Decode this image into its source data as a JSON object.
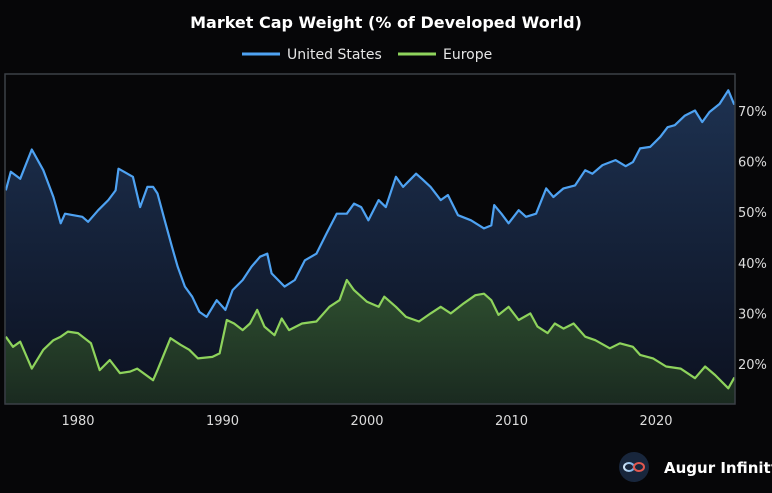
{
  "chart_data": {
    "type": "area",
    "title": "Market Cap Weight (% of Developed World)",
    "xlabel": "",
    "ylabel": "",
    "xlim": [
      1975,
      2025.7
    ],
    "ylim": [
      12,
      77
    ],
    "x_ticks": [
      "1980",
      "1990",
      "2000",
      "2010",
      "2020"
    ],
    "y_ticks": [
      "20%",
      "30%",
      "40%",
      "50%",
      "60%",
      "70%"
    ],
    "y_axis_side": "right",
    "grid": false,
    "legend_position": "top-center",
    "series": [
      {
        "name": "United States",
        "color": "#4ea2f2",
        "points": [
          [
            1975.0,
            54.3
          ],
          [
            1975.35,
            58
          ],
          [
            1976.0,
            56.6
          ],
          [
            1976.8,
            62.4
          ],
          [
            1977.6,
            58.3
          ],
          [
            1978.3,
            53
          ],
          [
            1978.8,
            47.8
          ],
          [
            1979.1,
            49.7
          ],
          [
            1980.3,
            49.1
          ],
          [
            1980.7,
            48.1
          ],
          [
            1981.4,
            50.4
          ],
          [
            1982.1,
            52.4
          ],
          [
            1982.6,
            54.3
          ],
          [
            1982.8,
            58.6
          ],
          [
            1983.8,
            57
          ],
          [
            1984.3,
            51
          ],
          [
            1984.8,
            55
          ],
          [
            1985.2,
            55
          ],
          [
            1985.5,
            53.7
          ],
          [
            1986.0,
            48.4
          ],
          [
            1986.5,
            43.2
          ],
          [
            1986.9,
            39.2
          ],
          [
            1987.4,
            35.3
          ],
          [
            1987.9,
            33.3
          ],
          [
            1988.4,
            30.3
          ],
          [
            1988.9,
            29.3
          ],
          [
            1989.6,
            32.6
          ],
          [
            1990.2,
            30.7
          ],
          [
            1990.7,
            34.6
          ],
          [
            1991.4,
            36.6
          ],
          [
            1992.0,
            39.2
          ],
          [
            1992.6,
            41.2
          ],
          [
            1993.1,
            41.8
          ],
          [
            1993.4,
            37.9
          ],
          [
            1994.3,
            35.3
          ],
          [
            1995.0,
            36.6
          ],
          [
            1995.7,
            40.5
          ],
          [
            1996.5,
            41.8
          ],
          [
            1997.2,
            45.8
          ],
          [
            1997.9,
            49.7
          ],
          [
            1998.6,
            49.7
          ],
          [
            1999.1,
            51.7
          ],
          [
            1999.6,
            51
          ],
          [
            2000.1,
            48.4
          ],
          [
            2000.8,
            52.4
          ],
          [
            2001.3,
            51
          ],
          [
            2002.0,
            57
          ],
          [
            2002.5,
            55
          ],
          [
            2003.4,
            57.6
          ],
          [
            2003.8,
            56.6
          ],
          [
            2004.4,
            55
          ],
          [
            2005.1,
            52.4
          ],
          [
            2005.6,
            53.4
          ],
          [
            2006.3,
            49.4
          ],
          [
            2007.2,
            48.4
          ],
          [
            2008.1,
            46.8
          ],
          [
            2008.6,
            47.4
          ],
          [
            2008.8,
            51.4
          ],
          [
            2009.3,
            49.7
          ],
          [
            2009.8,
            47.8
          ],
          [
            2010.5,
            50.4
          ],
          [
            2011.0,
            49.1
          ],
          [
            2011.7,
            49.7
          ],
          [
            2012.4,
            54.7
          ],
          [
            2012.9,
            53
          ],
          [
            2013.6,
            54.7
          ],
          [
            2014.4,
            55.3
          ],
          [
            2015.1,
            58.3
          ],
          [
            2015.6,
            57.6
          ],
          [
            2016.3,
            59.3
          ],
          [
            2017.2,
            60.3
          ],
          [
            2017.9,
            59.1
          ],
          [
            2018.4,
            59.9
          ],
          [
            2018.9,
            62.6
          ],
          [
            2019.6,
            62.9
          ],
          [
            2020.3,
            64.9
          ],
          [
            2020.8,
            66.8
          ],
          [
            2021.3,
            67.2
          ],
          [
            2022.0,
            69.1
          ],
          [
            2022.7,
            70.1
          ],
          [
            2023.2,
            67.8
          ],
          [
            2023.7,
            69.8
          ],
          [
            2024.4,
            71.4
          ],
          [
            2025.0,
            74.1
          ],
          [
            2025.4,
            71.4
          ],
          [
            2025.7,
            72.4
          ]
        ]
      },
      {
        "name": "Europe",
        "color": "#8ed35c",
        "points": [
          [
            1975.0,
            25.4
          ],
          [
            1975.5,
            23.4
          ],
          [
            1976.0,
            24.4
          ],
          [
            1976.8,
            19.1
          ],
          [
            1977.6,
            22.8
          ],
          [
            1978.3,
            24.7
          ],
          [
            1978.8,
            25.4
          ],
          [
            1979.3,
            26.4
          ],
          [
            1980.0,
            26.1
          ],
          [
            1980.9,
            24.1
          ],
          [
            1981.5,
            18.8
          ],
          [
            1982.2,
            20.8
          ],
          [
            1982.9,
            18.2
          ],
          [
            1983.6,
            18.5
          ],
          [
            1984.1,
            19.1
          ],
          [
            1985.2,
            16.8
          ],
          [
            1985.5,
            18.8
          ],
          [
            1986.4,
            25.1
          ],
          [
            1987.1,
            23.8
          ],
          [
            1987.7,
            22.8
          ],
          [
            1988.3,
            21.1
          ],
          [
            1989.3,
            21.4
          ],
          [
            1989.8,
            22.1
          ],
          [
            1990.3,
            28.7
          ],
          [
            1990.8,
            28
          ],
          [
            1991.4,
            26.7
          ],
          [
            1991.9,
            28
          ],
          [
            1992.4,
            30.7
          ],
          [
            1992.9,
            27.4
          ],
          [
            1993.6,
            25.7
          ],
          [
            1994.1,
            29
          ],
          [
            1994.6,
            26.7
          ],
          [
            1995.5,
            28
          ],
          [
            1996.5,
            28.4
          ],
          [
            1997.4,
            31.3
          ],
          [
            1998.1,
            32.6
          ],
          [
            1998.6,
            36.6
          ],
          [
            1999.1,
            34.6
          ],
          [
            2000.0,
            32.3
          ],
          [
            2000.8,
            31.3
          ],
          [
            2001.2,
            33.3
          ],
          [
            2002.0,
            31.3
          ],
          [
            2002.7,
            29.3
          ],
          [
            2003.6,
            28.4
          ],
          [
            2004.4,
            30
          ],
          [
            2005.1,
            31.3
          ],
          [
            2005.8,
            30
          ],
          [
            2006.7,
            32
          ],
          [
            2007.5,
            33.6
          ],
          [
            2008.1,
            33.9
          ],
          [
            2008.6,
            32.6
          ],
          [
            2009.1,
            29.7
          ],
          [
            2009.8,
            31.3
          ],
          [
            2010.5,
            28.7
          ],
          [
            2011.3,
            30
          ],
          [
            2011.8,
            27.4
          ],
          [
            2012.5,
            26.1
          ],
          [
            2013.0,
            28
          ],
          [
            2013.6,
            27
          ],
          [
            2014.3,
            28
          ],
          [
            2015.1,
            25.4
          ],
          [
            2015.8,
            24.7
          ],
          [
            2016.8,
            23.1
          ],
          [
            2017.5,
            24.1
          ],
          [
            2018.4,
            23.4
          ],
          [
            2018.9,
            21.8
          ],
          [
            2019.8,
            21.1
          ],
          [
            2020.7,
            19.5
          ],
          [
            2021.7,
            19.1
          ],
          [
            2022.7,
            17.2
          ],
          [
            2023.4,
            19.5
          ],
          [
            2024.1,
            17.8
          ],
          [
            2025.0,
            15.2
          ],
          [
            2025.4,
            17.2
          ],
          [
            2025.7,
            16.5
          ]
        ]
      }
    ]
  },
  "branding": {
    "name": "Augur Infinity",
    "logo_icon": "infinity-icon"
  }
}
